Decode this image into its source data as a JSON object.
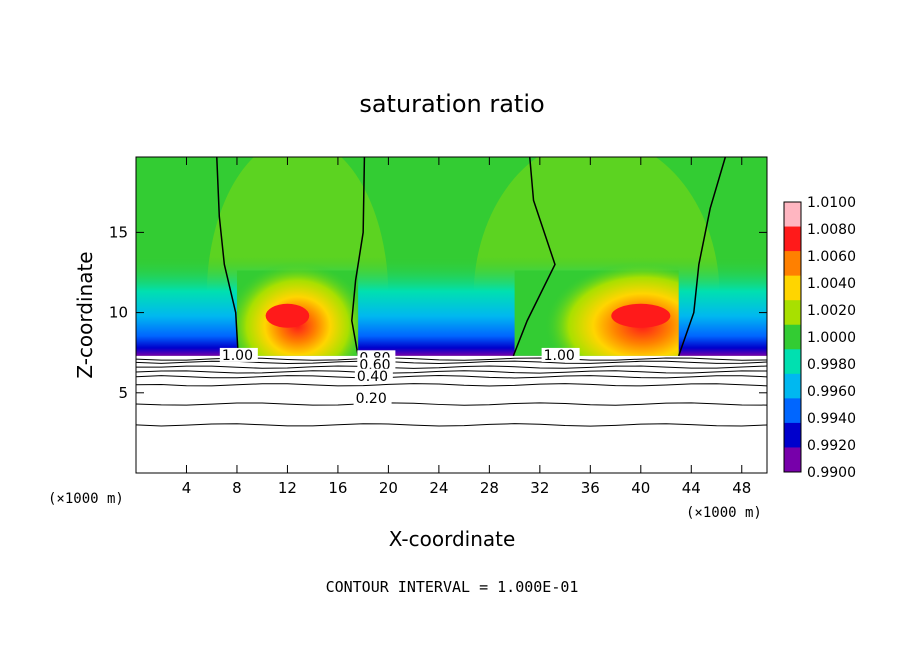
{
  "chart_data": {
    "type": "heatmap",
    "title": "saturation ratio",
    "xlabel": "X-coordinate",
    "ylabel": "Z-coordinate",
    "x_unit": "(×1000 m)",
    "y_unit": "(×1000 m)",
    "xlim": [
      0,
      50
    ],
    "ylim": [
      0,
      19.7
    ],
    "x_ticks": [
      4,
      8,
      12,
      16,
      20,
      24,
      28,
      32,
      36,
      40,
      44,
      48
    ],
    "y_ticks": [
      5,
      10,
      15
    ],
    "footer": "CONTOUR INTERVAL = 1.000E-01",
    "colorbar": {
      "labels": [
        "1.0100",
        "1.0080",
        "1.0060",
        "1.0040",
        "1.0020",
        "1.0000",
        "0.9980",
        "0.9960",
        "0.9940",
        "0.9920",
        "0.9900"
      ],
      "colors": [
        "#ffb6c1",
        "#ff1a1a",
        "#ff8000",
        "#ffd500",
        "#a8e000",
        "#33cc33",
        "#00e0b0",
        "#00b8f0",
        "#0066ff",
        "#0000cc",
        "#7700aa"
      ]
    },
    "cloud_base_height": 7.3,
    "contour_labels": [
      "1.00",
      "1.00",
      "0.80",
      "0.60",
      "0.40",
      "0.20"
    ],
    "contour_levels": [
      1.0,
      0.8,
      0.6,
      0.4,
      0.2
    ],
    "supersaturated_columns": [
      {
        "x_min": 8,
        "x_max": 17.6,
        "peak_x": 12,
        "peak_value": 1.008
      },
      {
        "x_min": 30,
        "x_max": 43,
        "peak_x": 40,
        "peak_value": 1.009
      }
    ]
  },
  "colors": {
    "background": "#ffffff",
    "base_field": "#33cc33",
    "axis": "#000000"
  }
}
